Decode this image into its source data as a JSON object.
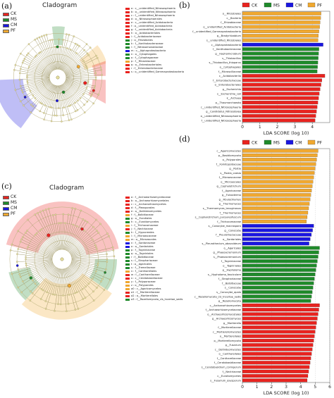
{
  "panel_labels": {
    "a": "(a)",
    "b": "(b)",
    "c": "(c)",
    "d": "(d)"
  },
  "colors": {
    "CK": "#e8231f",
    "MS": "#1f8a2a",
    "CM": "#1a16e0",
    "PF": "#f0a830"
  },
  "cladogram_a": {
    "title": "Cladogram",
    "legend": [
      {
        "name": "CK",
        "color": "#e8231f"
      },
      {
        "name": "MS",
        "color": "#1f8a2a"
      },
      {
        "name": "CM",
        "color": "#1a16e0"
      },
      {
        "name": "PF",
        "color": "#f0a830"
      }
    ],
    "taxa_key": [
      {
        "label": "a : c__unidentified_Nitrososphaeria",
        "color": "#e8231f"
      },
      {
        "label": "b : o__unidentified_Nitrososphaeria",
        "color": "#e8231f"
      },
      {
        "label": "c : f__unidentified_Nitrososphaeria",
        "color": "#e8231f"
      },
      {
        "label": "d : o__Nitrososphaerales",
        "color": "#e8231f"
      },
      {
        "label": "e : c__unidentified_Acidobacteria",
        "color": "#e8231f"
      },
      {
        "label": "f : o__unidentified_Acidobacteria",
        "color": "#e8231f"
      },
      {
        "label": "g : f__unidentified_Acidobacteria",
        "color": "#e8231f"
      },
      {
        "label": "h : o__Acidobacteriales",
        "color": "#e8231f"
      },
      {
        "label": "i : f__Acidobacteriaceae",
        "color": "#e8231f"
      },
      {
        "label": "j : o__Rhizobiales",
        "color": "#1f8a2a"
      },
      {
        "label": "k : f__Xanthobacteraceae",
        "color": "#1f8a2a"
      },
      {
        "label": "l : f__Nitrosomonadaceae",
        "color": "#1f8a2a"
      },
      {
        "label": "m : c__Alphaproteobacteria",
        "color": "#1a16e0"
      },
      {
        "label": "n : o__Cytophagales",
        "color": "#1f8a2a"
      },
      {
        "label": "o : f__Cytophagaceae",
        "color": "#1f8a2a"
      },
      {
        "label": "p : f__Rhizobiaceae",
        "color": "#f0a830"
      },
      {
        "label": "q : o__Enterobacteriales",
        "color": "#e8231f"
      },
      {
        "label": "r : f__Enterobacteriaceae",
        "color": "#e8231f"
      },
      {
        "label": "s : o__unidentified_Gammaproteobacteria",
        "color": "#e8231f"
      }
    ]
  },
  "cladogram_c": {
    "title": "Cladogram",
    "legend": [
      {
        "name": "CK",
        "color": "#e8231f"
      },
      {
        "name": "MS",
        "color": "#1f8a2a"
      },
      {
        "name": "CM",
        "color": "#1a16e0"
      },
      {
        "name": "PF",
        "color": "#f0a830"
      }
    ],
    "taxa_key": [
      {
        "label": "a : f__Archaeorhizomycetaceae",
        "color": "#e8231f"
      },
      {
        "label": "b : o__Archaeorhizomycetales",
        "color": "#e8231f"
      },
      {
        "label": "c : c__Archaeorhizomycetes",
        "color": "#e8231f"
      },
      {
        "label": "d : f__Pleosporales",
        "color": "#e8231f"
      },
      {
        "label": "e : o__Dothideomycetes",
        "color": "#e8231f"
      },
      {
        "label": "f : f__Bolbitiaceae",
        "color": "#f0a830"
      },
      {
        "label": "g : o__Eurotiales",
        "color": "#1f8a2a"
      },
      {
        "label": "h : c__Eurotiomycetes",
        "color": "#1f8a2a"
      },
      {
        "label": "i : f__Trichocomaceae",
        "color": "#f0a830"
      },
      {
        "label": "j : f__Nectriaceae",
        "color": "#e8231f"
      },
      {
        "label": "k : f__Hypocreales",
        "color": "#1f8a2a"
      },
      {
        "label": "l : f__Microascaceae",
        "color": "#f0a830"
      },
      {
        "label": "m : o__Microascales",
        "color": "#f0a830"
      },
      {
        "label": "n : f__Sordariaceae",
        "color": "#1a16e0"
      },
      {
        "label": "o : o__Sordariales",
        "color": "#1a16e0"
      },
      {
        "label": "p : f__Togniniaceae",
        "color": "#1f8a2a"
      },
      {
        "label": "q : o__Togniniales",
        "color": "#1f8a2a"
      },
      {
        "label": "r : f__Bolbitiaceae",
        "color": "#1f8a2a"
      },
      {
        "label": "s : f__Strophariaceae",
        "color": "#1f8a2a"
      },
      {
        "label": "t : o__Agaricales",
        "color": "#1f8a2a"
      },
      {
        "label": "u : f__Tremellaceae",
        "color": "#1f8a2a"
      },
      {
        "label": "v : f__Cantharellales",
        "color": "#f0a830"
      },
      {
        "label": "w : f__Cantharellaceae",
        "color": "#e8231f"
      },
      {
        "label": "x : c__Ceratobasidiaceae",
        "color": "#e8231f"
      },
      {
        "label": "y : f__Polyporaceae",
        "color": "#f0a830"
      },
      {
        "label": "z : o__Polyporales",
        "color": "#f0a830"
      },
      {
        "label": "a0 : c__Agaricomycetes",
        "color": "#f0a830"
      },
      {
        "label": "a1 : f__Mortierellaceae",
        "color": "#e8231f"
      },
      {
        "label": "a2 : o__Mortierellales",
        "color": "#e8231f"
      },
      {
        "label": "a3 : f__Rozellomycota_cls_Incertae_sedis",
        "color": "#1f8a2a"
      }
    ]
  },
  "chart_data": [
    {
      "type": "bar",
      "orientation": "horizontal",
      "legend": [
        "CK",
        "MS",
        "CM",
        "PF"
      ],
      "xlabel": "LDA SCORE (log 10)",
      "xlim": [
        0,
        5
      ],
      "xticks": [
        0,
        1,
        2,
        3,
        4
      ],
      "bars": [
        {
          "label": "o__Rhizobiales",
          "value": 4.5,
          "group": "PF"
        },
        {
          "label": "c__Bacteria",
          "value": 4.48,
          "group": "PF"
        },
        {
          "label": "f__Rhizobiaceae",
          "value": 4.45,
          "group": "PF"
        },
        {
          "label": "o__unidentified_Acidobacteria",
          "value": 4.42,
          "group": "PF"
        },
        {
          "label": "f__unidentified_Gammaproteobacteria",
          "value": 4.38,
          "group": "PF"
        },
        {
          "label": "g__Bradyrhizobium",
          "value": 4.35,
          "group": "PF"
        },
        {
          "label": "s__unidentified_Rhizobiales",
          "value": 4.33,
          "group": "PF"
        },
        {
          "label": "c__Alphaproteobacteria",
          "value": 4.62,
          "group": "CM"
        },
        {
          "label": "f__Xanthobacteraceae",
          "value": 4.38,
          "group": "MS"
        },
        {
          "label": "g__Hyphomicrobium",
          "value": 4.36,
          "group": "MS"
        },
        {
          "label": "s__Thiobacillus",
          "value": 4.34,
          "group": "MS"
        },
        {
          "label": "s__Thiobacillus_thioparus",
          "value": 4.32,
          "group": "MS"
        },
        {
          "label": "o__Cytophagales",
          "value": 4.3,
          "group": "MS"
        },
        {
          "label": "f__Microscillaceae",
          "value": 4.28,
          "group": "MS"
        },
        {
          "label": "c__Acidobacteriia",
          "value": 4.72,
          "group": "CK"
        },
        {
          "label": "f__Enterobacteriaceae",
          "value": 4.55,
          "group": "CK"
        },
        {
          "label": "o__Enterobacteriales",
          "value": 4.5,
          "group": "CK"
        },
        {
          "label": "g__Escherichia",
          "value": 4.45,
          "group": "CK"
        },
        {
          "label": "s__Escherichia_coli",
          "value": 4.4,
          "group": "CK"
        },
        {
          "label": "k__Archaea",
          "value": 4.36,
          "group": "CK"
        },
        {
          "label": "p__Thaumarchaeota",
          "value": 4.32,
          "group": "CK"
        },
        {
          "label": "c__unidentified_Nitrososphaeria",
          "value": 4.28,
          "group": "CK"
        },
        {
          "label": "g__Candidatus_Nitrosotalea",
          "value": 4.24,
          "group": "CK"
        },
        {
          "label": "o__unidentified_Nitrososphaeria",
          "value": 4.2,
          "group": "CK"
        },
        {
          "label": "f__unidentified_Nitrososphaeria",
          "value": 4.16,
          "group": "CK"
        }
      ]
    },
    {
      "type": "bar",
      "orientation": "horizontal",
      "legend": [
        "CK",
        "MS",
        "CM",
        "PF"
      ],
      "xlabel": "LDA SCORE (log 10)",
      "xlim": [
        0,
        6
      ],
      "xticks": [
        0,
        1,
        2,
        3,
        4,
        5,
        6
      ],
      "bars": [
        {
          "label": "c__Agaricomycetes",
          "value": 5.2,
          "group": "PF"
        },
        {
          "label": "p__Basidiomycota",
          "value": 5.15,
          "group": "PF"
        },
        {
          "label": "o__Polyporales",
          "value": 5.1,
          "group": "PF"
        },
        {
          "label": "f__Fomitopsidaceae",
          "value": 5.05,
          "group": "PF"
        },
        {
          "label": "g__Postia",
          "value": 5.0,
          "group": "PF"
        },
        {
          "label": "s__Postia_caesia",
          "value": 4.95,
          "group": "PF"
        },
        {
          "label": "f__Microascaceae",
          "value": 4.9,
          "group": "PF"
        },
        {
          "label": "o__Microascales",
          "value": 4.85,
          "group": "PF"
        },
        {
          "label": "g__Cephalotrichum",
          "value": 4.8,
          "group": "PF"
        },
        {
          "label": "f__Agaricaceae",
          "value": 4.75,
          "group": "PF"
        },
        {
          "label": "g__Fulvoderma",
          "value": 4.7,
          "group": "PF"
        },
        {
          "label": "g__Fibulochlamys",
          "value": 4.65,
          "group": "PF"
        },
        {
          "label": "g__Thermomyces",
          "value": 4.6,
          "group": "PF"
        },
        {
          "label": "s__Thermomyces_lanuginosus",
          "value": 4.55,
          "group": "PF"
        },
        {
          "label": "f__Thermomyces",
          "value": 4.5,
          "group": "PF"
        },
        {
          "label": "s__Cephalotrichum_purpureofuscum",
          "value": 4.45,
          "group": "PF"
        },
        {
          "label": "f__Trichocomaceae",
          "value": 4.4,
          "group": "PF"
        },
        {
          "label": "s__Conocybe_macrospora",
          "value": 4.9,
          "group": "CM"
        },
        {
          "label": "g__Conocybe",
          "value": 4.82,
          "group": "CM"
        },
        {
          "label": "f__Pleurotheciaceae",
          "value": 4.74,
          "group": "CM"
        },
        {
          "label": "o__Sordariales",
          "value": 4.66,
          "group": "CM"
        },
        {
          "label": "s__Pleurothecium_obovoideum",
          "value": 4.58,
          "group": "CM"
        },
        {
          "label": "o__Agaricales",
          "value": 5.3,
          "group": "MS"
        },
        {
          "label": "g__Phaeoacremonium",
          "value": 5.25,
          "group": "MS"
        },
        {
          "label": "s__Phaeoacremonium",
          "value": 5.2,
          "group": "MS"
        },
        {
          "label": "f__Togniniaceae",
          "value": 5.15,
          "group": "MS"
        },
        {
          "label": "o__Togniniales",
          "value": 5.1,
          "group": "MS"
        },
        {
          "label": "g__Hypholoma",
          "value": 5.05,
          "group": "MS"
        },
        {
          "label": "s__Hypholoma_fasciculare",
          "value": 5.0,
          "group": "MS"
        },
        {
          "label": "f__Strophariaceae",
          "value": 4.95,
          "group": "MS"
        },
        {
          "label": "f__Bolbitiaceae",
          "value": 4.9,
          "group": "MS"
        },
        {
          "label": "s__Conocybe",
          "value": 4.85,
          "group": "MS"
        },
        {
          "label": "s__Conocybe_apala",
          "value": 4.8,
          "group": "MS"
        },
        {
          "label": "c__Rozellomycota_cls_Incertae_sedis",
          "value": 4.75,
          "group": "MS"
        },
        {
          "label": "g__Rozellomycota",
          "value": 4.7,
          "group": "MS"
        },
        {
          "label": "c__Archaeorhizomycetes",
          "value": 5.3,
          "group": "CK"
        },
        {
          "label": "f__Archaeorhizomycetaceae",
          "value": 5.25,
          "group": "CK"
        },
        {
          "label": "o__Archaeorhizomycetales",
          "value": 5.2,
          "group": "CK"
        },
        {
          "label": "g__Archaeorhizomyces",
          "value": 5.15,
          "group": "CK"
        },
        {
          "label": "g__Mortierella",
          "value": 5.1,
          "group": "CK"
        },
        {
          "label": "f__Mortierellaceae",
          "value": 5.05,
          "group": "CK"
        },
        {
          "label": "c__Mortierellomycetes",
          "value": 5.0,
          "group": "CK"
        },
        {
          "label": "o__Mortierellales",
          "value": 4.95,
          "group": "CK"
        },
        {
          "label": "p__Mortierellomycota",
          "value": 4.9,
          "group": "CK"
        },
        {
          "label": "g__Fusarium",
          "value": 4.85,
          "group": "CK"
        },
        {
          "label": "c__Dothideomycetes",
          "value": 4.8,
          "group": "CK"
        },
        {
          "label": "o__Cantharellales",
          "value": 4.75,
          "group": "CK"
        },
        {
          "label": "f__Cantharellaceae",
          "value": 4.7,
          "group": "CK"
        },
        {
          "label": "f__Ceratobasidiaceae",
          "value": 4.65,
          "group": "CK"
        },
        {
          "label": "s__Ceratobasidium_cornigerum",
          "value": 4.6,
          "group": "CK"
        },
        {
          "label": "f__Nectriaceae",
          "value": 4.55,
          "group": "CK"
        },
        {
          "label": "c__Eurotiomycetes",
          "value": 4.5,
          "group": "CK"
        },
        {
          "label": "s__Fusarium_oxysporum",
          "value": 4.45,
          "group": "CK"
        }
      ]
    }
  ]
}
